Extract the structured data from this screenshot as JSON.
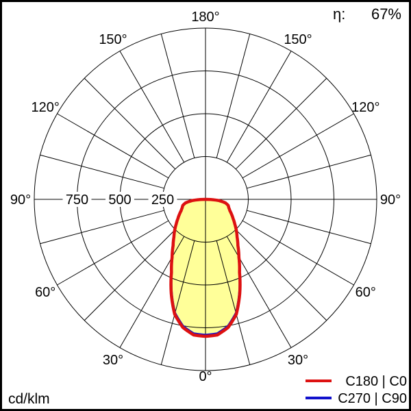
{
  "efficiency": {
    "label": "η:",
    "value": "67%"
  },
  "unit_label": "cd/klm",
  "legend": {
    "items": [
      {
        "label": "C180 | C0",
        "color": "#dd1111"
      },
      {
        "label": "C270 | C90",
        "color": "#1111cc"
      }
    ]
  },
  "chart_data": {
    "type": "polar",
    "subtype": "luminous-intensity-distribution",
    "unit": "cd/klm",
    "efficiency_percent": 67,
    "angle_tick_labels": [
      "0°",
      "30°",
      "60°",
      "90°",
      "120°",
      "150°",
      "180°"
    ],
    "angle_grid_step_deg": 15,
    "radial_ticks": [
      250,
      500,
      750,
      1000
    ],
    "radial_tick_labels_shown": [
      "250",
      "500",
      "750"
    ],
    "radial_max": 1000,
    "grid_color": "#000000",
    "fill_color": "#ffff99",
    "series": [
      {
        "name": "C180 | C0",
        "color": "#dd1111",
        "gamma_deg": [
          0,
          5,
          10,
          15,
          20,
          25,
          30,
          35,
          40,
          45,
          50,
          55,
          60,
          65,
          70,
          75,
          80,
          85,
          90
        ],
        "intensity": [
          800,
          795,
          760,
          695,
          585,
          470,
          390,
          330,
          287,
          254,
          223,
          197,
          176,
          157,
          145,
          137,
          118,
          75,
          0
        ]
      },
      {
        "name": "C270 | C90",
        "color": "#1111cc",
        "gamma_deg": [
          0,
          5,
          10,
          15,
          20,
          25,
          30,
          35,
          40,
          45,
          50,
          55,
          60,
          65,
          70,
          75,
          80,
          85,
          90
        ],
        "intensity": [
          795,
          790,
          755,
          690,
          580,
          467,
          387,
          327,
          285,
          252,
          221,
          196,
          175,
          156,
          144,
          136,
          117,
          74,
          0
        ]
      }
    ]
  }
}
